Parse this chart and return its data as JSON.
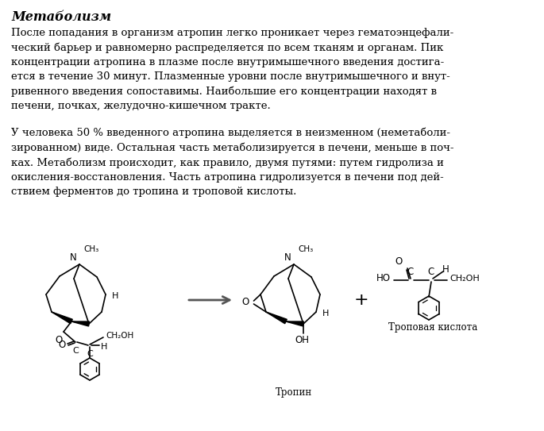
{
  "title": "Метаболизм",
  "paragraph1": "После попадания в организм атропин легко проникает через гематоэнцефали-\nческий барьер и равномерно распределяется по всем тканям и органам. Пик\nконцентрации атропина в плазме после внутримышечного введения достига-\nется в течение 30 минут. Плазменные уровни после внутримышечного и внут-\nривенного введения сопоставимы. Наибольшие его концентрации находят в\nпечени, почках, желудочно-кишечном тракте.",
  "paragraph2": "У человека 50 % введенного атропина выделяется в неизменном (неметаболи-\nзированном) виде. Остальная часть метаболизируется в печени, меньше в поч-\nках. Метаболизм происходит, как правило, двумя путями: путем гидролиза и\nокисления-восстановления. Часть атропина гидролизуется в печени под дей-\nствием ферментов до тропина и троповой кислоты.",
  "label_tropin": "Тропин",
  "label_tropovaya": "Троповая кислота",
  "bg_color": "#ffffff",
  "text_color": "#000000",
  "font_size_title": 11.5,
  "font_size_body": 9.5,
  "font_size_label": 8.5
}
